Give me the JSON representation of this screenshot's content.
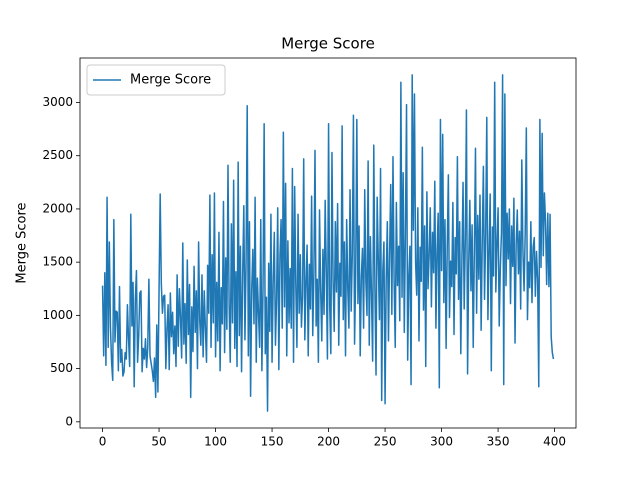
{
  "chart_data": {
    "type": "line",
    "title": "Merge Score",
    "y_label": "Merge Score",
    "legend": "upper left",
    "grid": false,
    "xlim": [
      -19.95,
      418.95
    ],
    "ylim": [
      -58,
      3418
    ],
    "xticks": [
      0,
      50,
      100,
      150,
      200,
      250,
      300,
      350,
      400
    ],
    "yticks": [
      0,
      500,
      1000,
      1500,
      2000,
      2500,
      3000
    ],
    "x": [
      0,
      1,
      2,
      3,
      4,
      5,
      6,
      7,
      8,
      9,
      10,
      11,
      12,
      13,
      14,
      15,
      16,
      17,
      18,
      19,
      20,
      21,
      22,
      23,
      24,
      25,
      26,
      27,
      28,
      29,
      30,
      31,
      32,
      33,
      34,
      35,
      36,
      37,
      38,
      39,
      40,
      41,
      42,
      43,
      44,
      45,
      46,
      47,
      48,
      49,
      50,
      51,
      52,
      53,
      54,
      55,
      56,
      57,
      58,
      59,
      60,
      61,
      62,
      63,
      64,
      65,
      66,
      67,
      68,
      69,
      70,
      71,
      72,
      73,
      74,
      75,
      76,
      77,
      78,
      79,
      80,
      81,
      82,
      83,
      84,
      85,
      86,
      87,
      88,
      89,
      90,
      91,
      92,
      93,
      94,
      95,
      96,
      97,
      98,
      99,
      100,
      101,
      102,
      103,
      104,
      105,
      106,
      107,
      108,
      109,
      110,
      111,
      112,
      113,
      114,
      115,
      116,
      117,
      118,
      119,
      120,
      121,
      122,
      123,
      124,
      125,
      126,
      127,
      128,
      129,
      130,
      131,
      132,
      133,
      134,
      135,
      136,
      137,
      138,
      139,
      140,
      141,
      142,
      143,
      144,
      145,
      146,
      147,
      148,
      149,
      150,
      151,
      152,
      153,
      154,
      155,
      156,
      157,
      158,
      159,
      160,
      161,
      162,
      163,
      164,
      165,
      166,
      167,
      168,
      169,
      170,
      171,
      172,
      173,
      174,
      175,
      176,
      177,
      178,
      179,
      180,
      181,
      182,
      183,
      184,
      185,
      186,
      187,
      188,
      189,
      190,
      191,
      192,
      193,
      194,
      195,
      196,
      197,
      198,
      199,
      200,
      201,
      202,
      203,
      204,
      205,
      206,
      207,
      208,
      209,
      210,
      211,
      212,
      213,
      214,
      215,
      216,
      217,
      218,
      219,
      220,
      221,
      222,
      223,
      224,
      225,
      226,
      227,
      228,
      229,
      230,
      231,
      232,
      233,
      234,
      235,
      236,
      237,
      238,
      239,
      240,
      241,
      242,
      243,
      244,
      245,
      246,
      247,
      248,
      249,
      250,
      251,
      252,
      253,
      254,
      255,
      256,
      257,
      258,
      259,
      260,
      261,
      262,
      263,
      264,
      265,
      266,
      267,
      268,
      269,
      270,
      271,
      272,
      273,
      274,
      275,
      276,
      277,
      278,
      279,
      280,
      281,
      282,
      283,
      284,
      285,
      286,
      287,
      288,
      289,
      290,
      291,
      292,
      293,
      294,
      295,
      296,
      297,
      298,
      299,
      300,
      301,
      302,
      303,
      304,
      305,
      306,
      307,
      308,
      309,
      310,
      311,
      312,
      313,
      314,
      315,
      316,
      317,
      318,
      319,
      320,
      321,
      322,
      323,
      324,
      325,
      326,
      327,
      328,
      329,
      330,
      331,
      332,
      333,
      334,
      335,
      336,
      337,
      338,
      339,
      340,
      341,
      342,
      343,
      344,
      345,
      346,
      347,
      348,
      349,
      350,
      351,
      352,
      353,
      354,
      355,
      356,
      357,
      358,
      359,
      360,
      361,
      362,
      363,
      364,
      365,
      366,
      367,
      368,
      369,
      370,
      371,
      372,
      373,
      374,
      375,
      376,
      377,
      378,
      379,
      380,
      381,
      382,
      383,
      384,
      385,
      386,
      387,
      388,
      389,
      390,
      391,
      392,
      393,
      394,
      395,
      396,
      397,
      398,
      399
    ],
    "series": [
      {
        "name": "Merge Score",
        "color": "#1f77b4",
        "values": [
          1280,
          620,
          1400,
          530,
          2110,
          700,
          1690,
          890,
          560,
          390,
          1900,
          750,
          1040,
          1030,
          480,
          1270,
          560,
          680,
          430,
          470,
          650,
          590,
          1100,
          780,
          520,
          1950,
          900,
          1310,
          330,
          1150,
          1420,
          560,
          810,
          1210,
          1230,
          470,
          690,
          590,
          780,
          510,
          700,
          1340,
          620,
          550,
          480,
          380,
          600,
          230,
          910,
          280,
          1240,
          2140,
          1300,
          1020,
          1180,
          1190,
          500,
          870,
          1100,
          490,
          1210,
          800,
          1030,
          640,
          900,
          520,
          1380,
          710,
          1250,
          980,
          600,
          1680,
          730,
          1110,
          550,
          1520,
          820,
          1290,
          230,
          1080,
          660,
          1460,
          840,
          1230,
          500,
          1690,
          950,
          720,
          1380,
          610,
          1230,
          880,
          560,
          1470,
          1020,
          2130,
          700,
          1570,
          930,
          2150,
          610,
          1310,
          760,
          1780,
          480,
          1260,
          920,
          2070,
          650,
          1540,
          870,
          2410,
          1100,
          560,
          1860,
          930,
          2270,
          690,
          1410,
          520,
          2440,
          810,
          1650,
          470,
          1390,
          2030,
          770,
          1500,
          2970,
          620,
          1880,
          240,
          1240,
          1620,
          920,
          2110,
          560,
          1350,
          1020,
          700,
          1900,
          480,
          1250,
          2800,
          640,
          1170,
          100,
          1490,
          850,
          1950,
          560,
          1320,
          1780,
          720,
          1150,
          2010,
          490,
          1560,
          1900,
          880,
          2720,
          1080,
          2240,
          620,
          1700,
          930,
          1440,
          880,
          2380,
          560,
          2210,
          1290,
          700,
          1950,
          1020,
          1570,
          890,
          1180,
          2470,
          770,
          1300,
          1660,
          620,
          1480,
          1060,
          2120,
          810,
          1380,
          2550,
          900,
          1340,
          560,
          1990,
          1240,
          760,
          1620,
          1010,
          2080,
          1410,
          590,
          2800,
          1100,
          640,
          2530,
          1320,
          850,
          1880,
          1220,
          2050,
          720,
          1490,
          1180,
          2780,
          960,
          1690,
          620,
          1900,
          1260,
          880,
          2180,
          1040,
          1570,
          2880,
          730,
          1390,
          2840,
          1110,
          1840,
          620,
          1360,
          1630,
          880,
          2180,
          1320,
          1000,
          2450,
          720,
          1740,
          1190,
          570,
          2600,
          1260,
          440,
          2110,
          1530,
          960,
          2380,
          200,
          1420,
          1690,
          170,
          1340,
          1880,
          760,
          1570,
          2230,
          1010,
          2490,
          1320,
          700,
          2060,
          1280,
          1650,
          950,
          3190,
          1170,
          2340,
          840,
          1780,
          2980,
          580,
          1370,
          1650,
          350,
          3260,
          1800,
          3080,
          1500,
          1190,
          2010,
          760,
          1640,
          1320,
          2580,
          1050,
          1840,
          520,
          2160,
          1250,
          1570,
          2010,
          1080,
          1780,
          1400,
          2260,
          880,
          1600,
          1960,
          320,
          2840,
          1420,
          2700,
          1120,
          1900,
          690,
          1640,
          2320,
          980,
          1510,
          1270,
          2060,
          820,
          1730,
          1390,
          2490,
          1150,
          1880,
          640,
          1540,
          2250,
          1060,
          1710,
          2930,
          450,
          1480,
          2080,
          1230,
          1850,
          700,
          1600,
          2570,
          1020,
          1940,
          1340,
          2130,
          860,
          1700,
          2400,
          1150,
          1760,
          2860,
          960,
          1590,
          2140,
          480,
          1830,
          1370,
          3190,
          1220,
          1660,
          2010,
          900,
          1450,
          1780,
          3260,
          350,
          3080,
          1280,
          1960,
          1530,
          2000,
          1110,
          1840,
          1460,
          2100,
          740,
          1670,
          1990,
          1390,
          1790,
          1060,
          2460,
          1600,
          1230,
          1770,
          2760,
          960,
          1500,
          1260,
          1880,
          1120,
          1640,
          1730,
          1180,
          1600,
          1340,
          330,
          2840,
          1450,
          2710,
          1560,
          2150,
          1880,
          1290,
          1960,
          1270,
          1950,
          800,
          650,
          590
        ]
      }
    ]
  }
}
